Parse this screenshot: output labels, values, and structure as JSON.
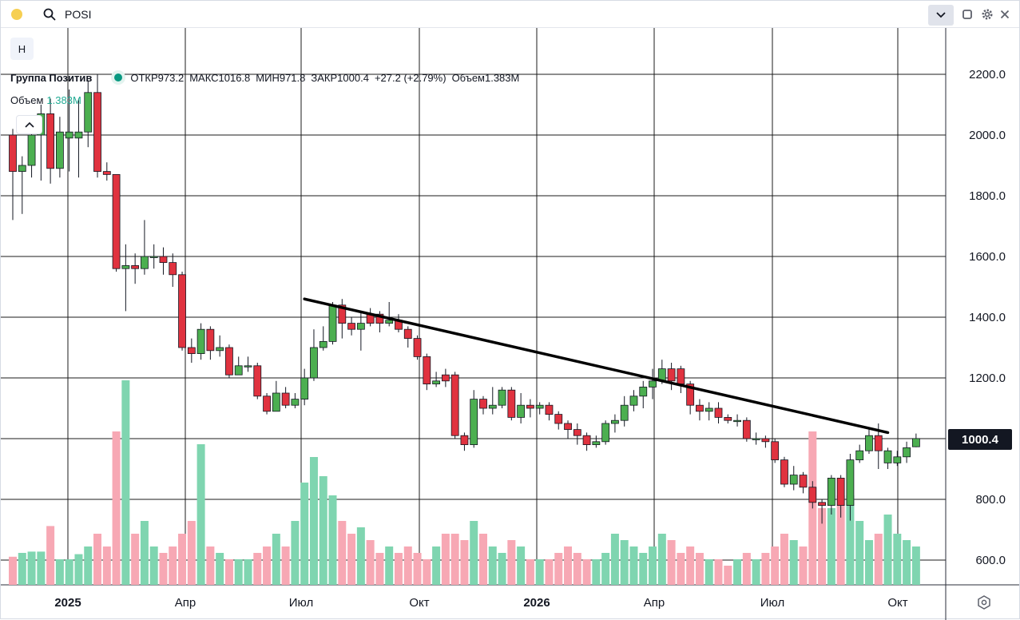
{
  "topbar": {
    "symbol": "POSI",
    "icons": [
      "yellow-dot",
      "search-icon",
      "chevron-down-icon",
      "square-icon",
      "gear-icon",
      "close-icon"
    ]
  },
  "legend": {
    "interval_button": "Н",
    "name": "Группа Позитив",
    "open_label": "ОТКР",
    "open": "973.2",
    "high_label": "МАКС",
    "high": "1016.8",
    "low_label": "МИН",
    "low": "971.8",
    "close_label": "ЗАКР",
    "close": "1000.4",
    "change": "+27.2 (+2.79%)",
    "volume_label": "Объем",
    "volume": "1.383M"
  },
  "volume_legend": {
    "label": "Объем",
    "value": "1.383M"
  },
  "price_badge": "1000.4",
  "colors": {
    "up": "#4caf50",
    "down": "#e0323f",
    "vol_up": "#7fd5b0",
    "vol_down": "#f7a8b4",
    "grid": "#1b1b1b",
    "trendline": "#000000"
  },
  "chart_data": {
    "type": "candlestick",
    "interval": "weekly",
    "y_ticks": [
      "600.0",
      "800.0",
      "1000.0",
      "1200.0",
      "1400.0",
      "1600.0",
      "1800.0",
      "2000.0",
      "2200.0"
    ],
    "x_ticks": [
      "2025",
      "Апр",
      "Июл",
      "Окт",
      "2026",
      "Апр",
      "Июл",
      "Окт"
    ],
    "ylim": [
      540,
      2290
    ],
    "trendline": [
      {
        "week": 31,
        "price": 1460
      },
      {
        "week": 93,
        "price": 1020
      }
    ],
    "candles": [
      [
        2000,
        1880,
        2020,
        1720,
        22,
        0
      ],
      [
        1880,
        1900,
        1930,
        1740,
        25,
        1
      ],
      [
        1900,
        2000,
        2060,
        1860,
        26,
        1
      ],
      [
        2000,
        2070,
        2100,
        1850,
        26,
        1
      ],
      [
        2070,
        1890,
        2120,
        1840,
        46,
        0
      ],
      [
        1890,
        2010,
        2060,
        1860,
        20,
        1
      ],
      [
        2010,
        1990,
        2150,
        1880,
        20,
        1
      ],
      [
        1990,
        2010,
        2120,
        1860,
        24,
        1
      ],
      [
        2010,
        2140,
        2180,
        1960,
        30,
        1
      ],
      [
        2140,
        1880,
        2200,
        1860,
        40,
        0
      ],
      [
        1880,
        1870,
        1910,
        1850,
        30,
        0
      ],
      [
        1870,
        1560,
        1870,
        1550,
        120,
        0
      ],
      [
        1560,
        1570,
        1640,
        1420,
        160,
        1
      ],
      [
        1570,
        1560,
        1610,
        1510,
        40,
        0
      ],
      [
        1560,
        1600,
        1720,
        1540,
        50,
        1
      ],
      [
        1600,
        1600,
        1640,
        1560,
        30,
        1
      ],
      [
        1600,
        1580,
        1630,
        1540,
        25,
        0
      ],
      [
        1580,
        1540,
        1610,
        1500,
        30,
        0
      ],
      [
        1540,
        1300,
        1550,
        1290,
        40,
        0
      ],
      [
        1300,
        1280,
        1330,
        1250,
        50,
        0
      ],
      [
        1280,
        1360,
        1380,
        1260,
        110,
        1
      ],
      [
        1360,
        1290,
        1370,
        1260,
        30,
        0
      ],
      [
        1290,
        1300,
        1340,
        1270,
        25,
        1
      ],
      [
        1300,
        1210,
        1310,
        1200,
        20,
        0
      ],
      [
        1210,
        1240,
        1270,
        1210,
        20,
        1
      ],
      [
        1240,
        1240,
        1270,
        1220,
        20,
        1
      ],
      [
        1240,
        1140,
        1250,
        1130,
        25,
        0
      ],
      [
        1140,
        1090,
        1150,
        1080,
        30,
        0
      ],
      [
        1090,
        1150,
        1190,
        1090,
        40,
        1
      ],
      [
        1150,
        1110,
        1170,
        1100,
        30,
        0
      ],
      [
        1110,
        1130,
        1150,
        1100,
        50,
        1
      ],
      [
        1130,
        1200,
        1230,
        1110,
        80,
        1
      ],
      [
        1200,
        1300,
        1360,
        1190,
        100,
        1
      ],
      [
        1300,
        1320,
        1370,
        1290,
        85,
        1
      ],
      [
        1320,
        1440,
        1450,
        1310,
        70,
        1
      ],
      [
        1440,
        1380,
        1460,
        1330,
        50,
        0
      ],
      [
        1380,
        1360,
        1400,
        1340,
        40,
        0
      ],
      [
        1360,
        1380,
        1420,
        1290,
        45,
        1
      ],
      [
        1380,
        1410,
        1430,
        1370,
        35,
        0
      ],
      [
        1410,
        1380,
        1420,
        1350,
        25,
        0
      ],
      [
        1380,
        1390,
        1450,
        1370,
        30,
        1
      ],
      [
        1390,
        1360,
        1410,
        1350,
        25,
        0
      ],
      [
        1360,
        1330,
        1370,
        1300,
        30,
        0
      ],
      [
        1330,
        1270,
        1340,
        1260,
        25,
        0
      ],
      [
        1270,
        1180,
        1280,
        1160,
        20,
        0
      ],
      [
        1180,
        1190,
        1220,
        1170,
        30,
        1
      ],
      [
        1190,
        1210,
        1230,
        1170,
        40,
        0
      ],
      [
        1210,
        1010,
        1220,
        1000,
        40,
        0
      ],
      [
        1010,
        980,
        1020,
        960,
        35,
        0
      ],
      [
        980,
        1130,
        1160,
        970,
        50,
        1
      ],
      [
        1130,
        1100,
        1140,
        1080,
        40,
        0
      ],
      [
        1100,
        1110,
        1170,
        1080,
        30,
        1
      ],
      [
        1110,
        1160,
        1170,
        1100,
        25,
        1
      ],
      [
        1160,
        1070,
        1170,
        1060,
        35,
        0
      ],
      [
        1070,
        1110,
        1150,
        1050,
        30,
        1
      ],
      [
        1110,
        1100,
        1130,
        1070,
        20,
        0
      ],
      [
        1100,
        1110,
        1120,
        1080,
        20,
        1
      ],
      [
        1110,
        1080,
        1120,
        1060,
        20,
        0
      ],
      [
        1080,
        1050,
        1090,
        1030,
        25,
        0
      ],
      [
        1050,
        1030,
        1060,
        1000,
        30,
        0
      ],
      [
        1030,
        1010,
        1050,
        980,
        25,
        0
      ],
      [
        1010,
        980,
        1020,
        960,
        20,
        0
      ],
      [
        980,
        990,
        1010,
        970,
        20,
        1
      ],
      [
        990,
        1050,
        1060,
        980,
        25,
        1
      ],
      [
        1050,
        1060,
        1080,
        1020,
        40,
        1
      ],
      [
        1060,
        1110,
        1140,
        1040,
        35,
        1
      ],
      [
        1110,
        1140,
        1160,
        1090,
        30,
        1
      ],
      [
        1140,
        1170,
        1190,
        1100,
        25,
        1
      ],
      [
        1170,
        1190,
        1230,
        1130,
        30,
        1
      ],
      [
        1190,
        1230,
        1260,
        1180,
        40,
        1
      ],
      [
        1230,
        1190,
        1250,
        1160,
        35,
        0
      ],
      [
        1230,
        1180,
        1240,
        1150,
        25,
        0
      ],
      [
        1180,
        1110,
        1190,
        1080,
        30,
        0
      ],
      [
        1110,
        1090,
        1130,
        1060,
        25,
        0
      ],
      [
        1090,
        1100,
        1120,
        1060,
        20,
        1
      ],
      [
        1100,
        1070,
        1120,
        1050,
        20,
        0
      ],
      [
        1070,
        1060,
        1080,
        1050,
        15,
        0
      ],
      [
        1060,
        1060,
        1080,
        1040,
        20,
        1
      ],
      [
        1060,
        1000,
        1070,
        990,
        25,
        0
      ],
      [
        1000,
        1000,
        1020,
        980,
        20,
        1
      ],
      [
        1000,
        990,
        1010,
        970,
        25,
        0
      ],
      [
        990,
        930,
        1000,
        920,
        30,
        0
      ],
      [
        930,
        850,
        940,
        840,
        40,
        0
      ],
      [
        850,
        880,
        910,
        830,
        35,
        1
      ],
      [
        880,
        840,
        890,
        820,
        30,
        0
      ],
      [
        840,
        790,
        860,
        770,
        120,
        0
      ],
      [
        790,
        780,
        800,
        720,
        60,
        0
      ],
      [
        780,
        870,
        880,
        750,
        60,
        1
      ],
      [
        870,
        780,
        880,
        740,
        70,
        0
      ],
      [
        780,
        930,
        950,
        730,
        70,
        1
      ],
      [
        930,
        960,
        980,
        920,
        50,
        1
      ],
      [
        960,
        1010,
        1030,
        950,
        35,
        1
      ],
      [
        1010,
        960,
        1050,
        900,
        40,
        0
      ],
      [
        960,
        920,
        970,
        900,
        55,
        1
      ],
      [
        920,
        940,
        960,
        910,
        40,
        1
      ],
      [
        940,
        970,
        990,
        920,
        35,
        1
      ],
      [
        973.2,
        1000.4,
        1016.8,
        971.8,
        30,
        1
      ]
    ]
  }
}
